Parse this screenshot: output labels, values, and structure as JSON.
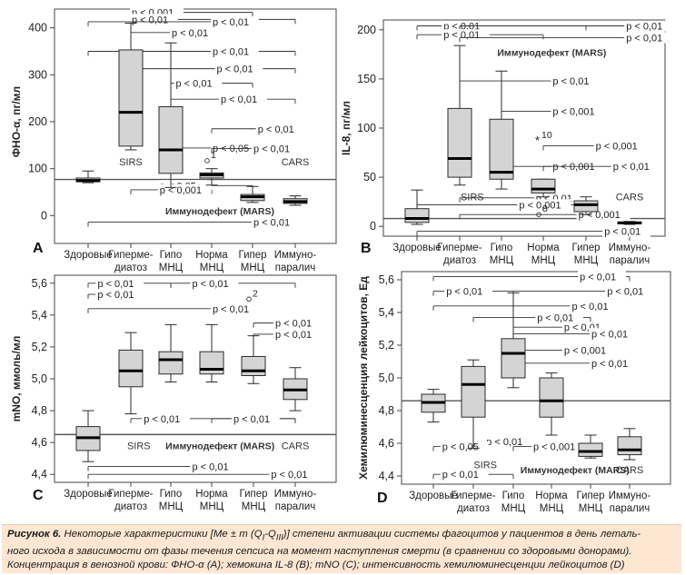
{
  "chart_data": [
    {
      "type": "box",
      "panel_letter": "A",
      "ylabel": "ФНО-α, пг/мл",
      "ylim": [
        -40,
        440
      ],
      "yticks": [
        0,
        100,
        200,
        300,
        400
      ],
      "ytick_labels": [
        "0",
        "100",
        "200",
        "300",
        "400"
      ],
      "reference_line": 77,
      "categories": [
        [
          "Здоровые"
        ],
        [
          "Гиперме-",
          "диатоз"
        ],
        [
          "Гипо",
          "МНЦ"
        ],
        [
          "Норма",
          "МНЦ"
        ],
        [
          "Гипер",
          "МНЦ"
        ],
        [
          "Иммуно-",
          "паралич"
        ]
      ],
      "boxes": [
        {
          "whisker_low": 70,
          "q1": 72,
          "median": 75,
          "q3": 80,
          "whisker_high": 95
        },
        {
          "whisker_low": 140,
          "q1": 148,
          "median": 220,
          "q3": 353,
          "whisker_high": 410
        },
        {
          "whisker_low": 60,
          "q1": 90,
          "median": 140,
          "q3": 232,
          "whisker_high": 368
        },
        {
          "whisker_low": 65,
          "q1": 80,
          "median": 87,
          "q3": 91,
          "whisker_high": 100
        },
        {
          "whisker_low": 28,
          "q1": 32,
          "median": 40,
          "q3": 45,
          "whisker_high": 62
        },
        {
          "whisker_low": 22,
          "q1": 26,
          "median": 30,
          "q3": 36,
          "whisker_high": 42
        }
      ],
      "outliers": [
        {
          "x": 3,
          "y": 117,
          "label": "1"
        }
      ],
      "group_labels": [
        {
          "text": "SIRS",
          "x": 1,
          "y": 115
        },
        {
          "text": "CARS",
          "x": 5,
          "y": 115
        },
        {
          "text": "Иммунодефект (MARS)",
          "x": 3.2,
          "y": 10
        }
      ],
      "brackets": [
        {
          "x1": 1,
          "x2": 4,
          "y": 433,
          "label": "p < 0,001",
          "label_x": 1.0
        },
        {
          "x1": 1,
          "x2": 5,
          "y": 418,
          "label": "p < 0,01",
          "label_x": 1.0
        },
        {
          "x1": 0,
          "x2": 3,
          "y": 413,
          "label": "p < 0,01",
          "label_x": 3.0
        },
        {
          "x1": 1,
          "x2": 2,
          "y": 390,
          "label": "p < 0,01",
          "label_x": 2.0
        },
        {
          "x1": 0,
          "x2": 5,
          "y": 350,
          "label": "p < 0,01",
          "label_x": 3.0
        },
        {
          "x1": 1,
          "x2": 5,
          "y": 313,
          "label": "p < 0,01",
          "label_x": 3.1
        },
        {
          "x1": 2,
          "x2": 4,
          "y": 282,
          "label": "p < 0,01",
          "label_x": 2.1
        },
        {
          "x1": 2,
          "x2": 5,
          "y": 248,
          "label": "p < 0,01",
          "label_x": 3.2
        },
        {
          "x1": 3,
          "x2": 5,
          "y": 185,
          "label": "p < 0,01",
          "label_x": 4.1
        },
        {
          "x1": 2,
          "x2": 3,
          "y": 144,
          "label": "p < 0,05",
          "label_x": 3.0
        },
        {
          "x1": 3,
          "x2": 4,
          "y": 143,
          "label": "p < 0,01",
          "label_x": 4.0
        },
        {
          "x1": 2,
          "x2": 4,
          "y": 64,
          "label": "p < 0,05",
          "label_x": 1.7
        },
        {
          "x1": 1,
          "x2": 3,
          "y": 55,
          "label": "p < 0,001",
          "label_x": 1.7
        },
        {
          "x1": 0,
          "x2": 5,
          "y": -14,
          "label": "p < 0,01",
          "label_x": 4.0
        }
      ]
    },
    {
      "type": "box",
      "panel_letter": "B",
      "ylabel": "IL-8, пг/мл",
      "ylim": [
        -10,
        210
      ],
      "yticks": [
        0,
        50,
        100,
        150,
        200
      ],
      "ytick_labels": [
        "0",
        "50",
        "100",
        "150",
        "200"
      ],
      "reference_line": 8,
      "categories": [
        [
          "Здоровые"
        ],
        [
          "Гиперме-",
          "диатоз"
        ],
        [
          "Гипо",
          "МНЦ"
        ],
        [
          "Норма",
          "МНЦ"
        ],
        [
          "Гипер",
          "МНЦ"
        ],
        [
          "Иммуно-",
          "паралич"
        ]
      ],
      "boxes": [
        {
          "whisker_low": 2,
          "q1": 4,
          "median": 8,
          "q3": 18,
          "whisker_high": 37
        },
        {
          "whisker_low": 42,
          "q1": 50,
          "median": 69,
          "q3": 120,
          "whisker_high": 184
        },
        {
          "whisker_low": 38,
          "q1": 48,
          "median": 55,
          "q3": 109,
          "whisker_high": 158
        },
        {
          "whisker_low": 30,
          "q1": 34,
          "median": 38,
          "q3": 48,
          "whisker_high": 48
        },
        {
          "whisker_low": 12,
          "q1": 15,
          "median": 22,
          "q3": 26,
          "whisker_high": 30
        },
        {
          "whisker_low": 2,
          "q1": 2.5,
          "median": 3.5,
          "q3": 4.5,
          "whisker_high": 5
        }
      ],
      "outliers": [
        {
          "x": 3,
          "y": 88,
          "label": "10",
          "marker": "*"
        },
        {
          "x": 3,
          "y": 12,
          "label": "8"
        }
      ],
      "group_labels": [
        {
          "text": "SIRS",
          "x": 1.3,
          "y": 30
        },
        {
          "text": "CARS",
          "x": 5.0,
          "y": 30
        },
        {
          "text": "Иммунодефект (MARS)",
          "x": 3.2,
          "y": 177
        }
      ],
      "brackets": [
        {
          "x1": 0,
          "x2": 4,
          "y": 204,
          "label": "p < 0,01",
          "label_x": 0.6
        },
        {
          "x1": 1,
          "x2": 5,
          "y": 204,
          "label": "p < 0,01",
          "label_x": 4.9
        },
        {
          "x1": 0,
          "x2": 3,
          "y": 195,
          "label": "p < 0,01",
          "label_x": 0.6
        },
        {
          "x1": 1,
          "x2": 5,
          "y": 192,
          "label": "p < 0,01",
          "label_x": 4.9
        },
        {
          "x1": 1,
          "x2": 4,
          "y": 148,
          "label": "p < 0,01",
          "label_x": 3.2
        },
        {
          "x1": 2,
          "x2": 4,
          "y": 117,
          "label": "p < 0,001",
          "label_x": 3.2
        },
        {
          "x1": 3,
          "x2": 5,
          "y": 82,
          "label": "p < 0,001",
          "label_x": 4.2
        },
        {
          "x1": 2,
          "x2": 4,
          "y": 61,
          "label": "p < 0,001",
          "label_x": 3.2
        },
        {
          "x1": 3,
          "x2": 5,
          "y": 61,
          "label": "p < 0,01",
          "label_x": 4.6
        },
        {
          "x1": 1,
          "x2": 3,
          "y": 29,
          "label": "p < 0,01",
          "label_x": 2.8
        },
        {
          "x1": 0,
          "x2": 4,
          "y": 22,
          "label": "p < 0,001",
          "label_x": 2.4
        },
        {
          "x1": 1,
          "x2": 5,
          "y": 12,
          "label": "p < 0,001",
          "label_x": 3.8
        },
        {
          "x1": 0,
          "x2": 5,
          "y": -5,
          "label": "p < 0,01",
          "label_x": 4.4
        }
      ]
    },
    {
      "type": "box",
      "panel_letter": "C",
      "ylabel": "mNO, ммоль/мл",
      "ylim": [
        4.35,
        5.65
      ],
      "yticks": [
        4.4,
        4.6,
        4.8,
        5.0,
        5.2,
        5.4,
        5.6
      ],
      "ytick_labels": [
        "4,4",
        "4,6",
        "4,8",
        "5,0",
        "5,2",
        "5,4",
        "5,6"
      ],
      "reference_line": 4.65,
      "categories": [
        [
          "Здоровые"
        ],
        [
          "Гиперме-",
          "диатоз"
        ],
        [
          "Гипо",
          "МНЦ"
        ],
        [
          "Норма",
          "МНЦ"
        ],
        [
          "Гипер",
          "МНЦ"
        ],
        [
          "Иммуно-",
          "паралич"
        ]
      ],
      "boxes": [
        {
          "whisker_low": 4.48,
          "q1": 4.55,
          "median": 4.63,
          "q3": 4.7,
          "whisker_high": 4.8
        },
        {
          "whisker_low": 4.78,
          "q1": 4.95,
          "median": 5.05,
          "q3": 5.18,
          "whisker_high": 5.29
        },
        {
          "whisker_low": 4.98,
          "q1": 5.03,
          "median": 5.12,
          "q3": 5.17,
          "whisker_high": 5.34
        },
        {
          "whisker_low": 4.98,
          "q1": 5.03,
          "median": 5.06,
          "q3": 5.17,
          "whisker_high": 5.34
        },
        {
          "whisker_low": 4.97,
          "q1": 5.02,
          "median": 5.05,
          "q3": 5.14,
          "whisker_high": 5.27
        },
        {
          "whisker_low": 4.8,
          "q1": 4.87,
          "median": 4.93,
          "q3": 5.0,
          "whisker_high": 5.07
        }
      ],
      "outliers": [
        {
          "x": 4,
          "y": 5.5,
          "label": "2"
        }
      ],
      "group_labels": [
        {
          "text": "SIRS",
          "x": 1.2,
          "y": 4.58
        },
        {
          "text": "CARS",
          "x": 5.0,
          "y": 4.58
        },
        {
          "text": "Иммунодефект (MARS)",
          "x": 3.2,
          "y": 4.58
        }
      ],
      "brackets": [
        {
          "x1": 0,
          "x2": 2,
          "y": 5.6,
          "label": "p < 0,01",
          "label_x": 0.2
        },
        {
          "x1": 2,
          "x2": 5,
          "y": 5.6,
          "label": "p < 0,01",
          "label_x": 2.5
        },
        {
          "x1": 0,
          "x2": 1,
          "y": 5.53,
          "label": "p < 0,01",
          "label_x": 0.2
        },
        {
          "x1": 0,
          "x2": 4,
          "y": 5.44,
          "label": "p < 0,01",
          "label_x": 3.0
        },
        {
          "x1": 4,
          "x2": 5,
          "y": 5.35,
          "label": "p < 0,01",
          "label_x": 4.5
        },
        {
          "x1": 4,
          "x2": 5,
          "y": 5.28,
          "label": "p < 0,01",
          "label_x": 4.5
        },
        {
          "x1": 1,
          "x2": 5,
          "y": 4.75,
          "label": "p < 0,01",
          "label_x": 1.3
        },
        {
          "x1": 3,
          "x2": 5,
          "y": 4.75,
          "label": "p < 0,01",
          "label_x": 3.5
        },
        {
          "x1": 0,
          "x2": 3,
          "y": 4.45,
          "label": "p < 0,01",
          "label_x": 2.5
        },
        {
          "x1": 0,
          "x2": 5,
          "y": 4.4,
          "label": "p < 0,01",
          "label_x": 4.4
        }
      ]
    },
    {
      "type": "box",
      "panel_letter": "D",
      "ylabel": "Хемилюминесценция лейкоцитов, Ед",
      "ylim": [
        4.35,
        5.65
      ],
      "yticks": [
        4.4,
        4.6,
        4.8,
        5.0,
        5.2,
        5.4,
        5.6
      ],
      "ytick_labels": [
        "4,4",
        "4,6",
        "4,8",
        "5,0",
        "5,2",
        "5,4",
        "5,6"
      ],
      "reference_line": 4.86,
      "categories": [
        [
          "Здоровые"
        ],
        [
          "Гиперме-",
          "диатоз"
        ],
        [
          "Гипо",
          "МНЦ"
        ],
        [
          "Норма",
          "МНЦ"
        ],
        [
          "Гипер",
          "МНЦ"
        ],
        [
          "Иммуно-",
          "паралич"
        ]
      ],
      "boxes": [
        {
          "whisker_low": 4.73,
          "q1": 4.79,
          "median": 4.85,
          "q3": 4.9,
          "whisker_high": 4.93
        },
        {
          "whisker_low": 4.57,
          "q1": 4.76,
          "median": 4.96,
          "q3": 5.07,
          "whisker_high": 5.11
        },
        {
          "whisker_low": 4.94,
          "q1": 5.0,
          "median": 5.15,
          "q3": 5.24,
          "whisker_high": 5.52
        },
        {
          "whisker_low": 4.65,
          "q1": 4.76,
          "median": 4.86,
          "q3": 5.0,
          "whisker_high": 5.03
        },
        {
          "whisker_low": 4.51,
          "q1": 4.52,
          "median": 4.55,
          "q3": 4.6,
          "whisker_high": 4.65
        },
        {
          "whisker_low": 4.5,
          "q1": 4.53,
          "median": 4.56,
          "q3": 4.64,
          "whisker_high": 4.69
        }
      ],
      "outliers": [],
      "group_labels": [
        {
          "text": "SIRS",
          "x": 1.3,
          "y": 4.47
        },
        {
          "text": "CARS",
          "x": 5.0,
          "y": 4.44
        },
        {
          "text": "Иммунодефект (MARS)",
          "x": 3.6,
          "y": 4.44
        }
      ],
      "brackets": [
        {
          "x1": 0,
          "x2": 5,
          "y": 5.62,
          "label": "p < 0,01",
          "label_x": 3.7
        },
        {
          "x1": 0,
          "x2": 2,
          "y": 5.53,
          "label": "p < 0,01",
          "label_x": 0.3
        },
        {
          "x1": 2,
          "x2": 5,
          "y": 5.53,
          "label": "p < 0,01",
          "label_x": 4.4
        },
        {
          "x1": 0,
          "x2": 4,
          "y": 5.44,
          "label": "p < 0,01",
          "label_x": 3.5
        },
        {
          "x1": 1,
          "x2": 4,
          "y": 5.37,
          "label": "p < 0,01",
          "label_x": 2.6
        },
        {
          "x1": 2,
          "x2": 4,
          "y": 5.31,
          "label": "p < 0,01",
          "label_x": 3.3
        },
        {
          "x1": 2,
          "x2": 5,
          "y": 5.27,
          "label": "p < 0,01",
          "label_x": 4.0
        },
        {
          "x1": 2,
          "x2": 4,
          "y": 5.17,
          "label": "p < 0,001",
          "label_x": 3.3
        },
        {
          "x1": 2,
          "x2": 5,
          "y": 5.09,
          "label": "p < 0,01",
          "label_x": 4.0
        },
        {
          "x1": 1,
          "x2": 2,
          "y": 4.61,
          "label": "p < 0,01",
          "label_x": 1.3
        },
        {
          "x1": 0,
          "x2": 1,
          "y": 4.58,
          "label": "p < 0,05",
          "label_x": 0.2
        },
        {
          "x1": 2,
          "x2": 3,
          "y": 4.58,
          "label": "p < 0,001",
          "label_x": 2.5
        },
        {
          "x1": 0,
          "x2": 2,
          "y": 4.41,
          "label": "p < 0,01",
          "label_x": 0.2
        }
      ]
    }
  ],
  "caption": {
    "prefix": "Рисунок 6.",
    "line1": "Некоторые характеристики [Me ± m (Q",
    "q1_sub": "I",
    "mid": "-Q",
    "q3_sub": "III",
    "line1_end": ")] степени активации системы фагоцитов у пациентов в день леталь-",
    "line2": "ного исхода в зависимости от фазы течения сепсиса на момент наступления смерти (в сравнении со здоровыми донорами).",
    "line3": "Концентрация в венозной крови: ФНО-α (A); хемокина IL-8 (B); mNO (C); интенсивность хемилюминесценции лейкоцитов (D)"
  },
  "colors": {
    "box_fill": "#d4d4d4",
    "line": "#2b2b2b",
    "caption_bg": "#fde7d3"
  }
}
